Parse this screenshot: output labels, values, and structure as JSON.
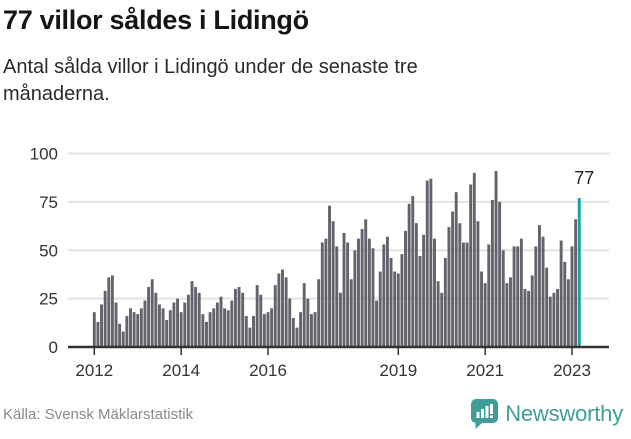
{
  "header": {
    "title": "77 villor såldes i Lidingö",
    "subtitle": "Antal sålda villor i Lidingö under de senaste tre månaderna."
  },
  "chart_data": {
    "type": "bar",
    "title": "77 villor såldes i Lidingö",
    "subtitle": "Antal sålda villor i Lidingö under de senaste tre månaderna.",
    "x_start": "2012-01",
    "x_end": "2023-03",
    "values": [
      18,
      13,
      22,
      29,
      36,
      37,
      23,
      12,
      8,
      16,
      20,
      18,
      17,
      20,
      24,
      31,
      35,
      28,
      22,
      20,
      14,
      19,
      23,
      25,
      18,
      23,
      27,
      34,
      31,
      28,
      17,
      13,
      18,
      20,
      23,
      26,
      20,
      19,
      24,
      30,
      31,
      28,
      16,
      10,
      16,
      32,
      27,
      17,
      18,
      20,
      32,
      38,
      40,
      36,
      25,
      15,
      10,
      18,
      33,
      25,
      17,
      18,
      35,
      54,
      56,
      73,
      65,
      52,
      28,
      59,
      54,
      35,
      50,
      56,
      61,
      66,
      56,
      51,
      24,
      39,
      53,
      57,
      46,
      39,
      38,
      48,
      60,
      74,
      78,
      64,
      47,
      58,
      86,
      87,
      56,
      34,
      28,
      46,
      62,
      70,
      80,
      64,
      54,
      54,
      84,
      90,
      65,
      39,
      33,
      53,
      76,
      91,
      75,
      50,
      33,
      36,
      52,
      52,
      56,
      30,
      29,
      37,
      52,
      63,
      57,
      41,
      26,
      28,
      30,
      55,
      44,
      35,
      52,
      66,
      77
    ],
    "highlight_index": 134,
    "highlight_value": 77,
    "annotation_label": "77",
    "ylim": [
      0,
      100
    ],
    "y_ticks": [
      0,
      25,
      50,
      75,
      100
    ],
    "x_tick_labels": [
      "2012",
      "2014",
      "2016",
      "2019",
      "2021",
      "2023"
    ],
    "x_tick_month_offsets": [
      0,
      24,
      48,
      84,
      108,
      132
    ],
    "grid": true,
    "legend": false,
    "colors": {
      "bar": "#62636b",
      "highlight": "#12a2a2",
      "grid": "#e3e3e3",
      "axis": "#333333",
      "tick_text": "#333333",
      "annotation_text": "#222222"
    }
  },
  "footer": {
    "source": "Källa: Svensk Mäklarstatistik",
    "brand": "Newsworthy",
    "brand_color": "#3f9e99"
  }
}
